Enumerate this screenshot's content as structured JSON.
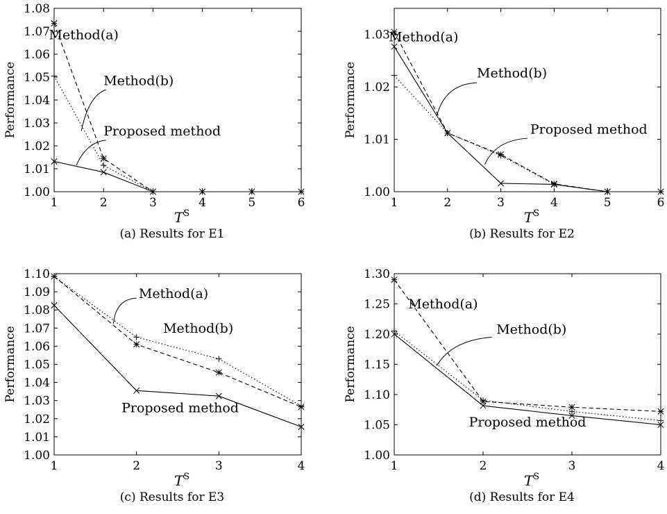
{
  "chart_data": [
    {
      "type": "line",
      "caption": "(a) Results for E1",
      "ylabel": "Performance",
      "xlabel_main": "T",
      "xlabel_sup": "S",
      "xlim": [
        1,
        6
      ],
      "ylim": [
        1.0,
        1.08
      ],
      "x_ticks": [
        1,
        2,
        3,
        4,
        5,
        6
      ],
      "y_ticks": [
        1.0,
        1.01,
        1.02,
        1.03,
        1.04,
        1.05,
        1.06,
        1.07,
        1.08
      ],
      "y_decimals": 2,
      "x": [
        1,
        2,
        3,
        4,
        5,
        6
      ],
      "series": [
        {
          "name": "Method(a)",
          "style": "dashed",
          "marker": "star",
          "values": [
            1.0735,
            1.0145,
            1.0,
            1.0,
            1.0,
            1.0
          ]
        },
        {
          "name": "Method(b)",
          "style": "dotted",
          "marker": "plus",
          "values": [
            1.0505,
            1.0115,
            1.0,
            1.0,
            1.0,
            1.0
          ]
        },
        {
          "name": "Proposed method",
          "style": "solid",
          "marker": "x",
          "values": [
            1.0132,
            1.0085,
            1.0,
            1.0,
            1.0,
            1.0
          ]
        }
      ],
      "annotations": [
        {
          "text": "Method(a)",
          "x": 1.6,
          "y": 1.0665,
          "anchor": "middle"
        },
        {
          "text": "Method(b)",
          "x": 2.0,
          "y": 1.0465,
          "anchor": "start",
          "line": {
            "from": [
              2.05,
              1.0445
            ],
            "ctrl": [
              1.7,
              1.042
            ],
            "to": [
              1.55,
              1.0265
            ]
          }
        },
        {
          "text": "Proposed method",
          "x": 2.0,
          "y": 1.0245,
          "anchor": "start",
          "line": {
            "from": [
              2.05,
              1.0225
            ],
            "ctrl": [
              1.65,
              1.0215
            ],
            "to": [
              1.45,
              1.0115
            ]
          }
        }
      ]
    },
    {
      "type": "line",
      "caption": "(b) Results for E2",
      "ylabel": "Performance",
      "xlabel_main": "T",
      "xlabel_sup": "S",
      "xlim": [
        1,
        6
      ],
      "ylim": [
        1.0,
        1.035
      ],
      "x_ticks": [
        1,
        2,
        3,
        4,
        5,
        6
      ],
      "y_ticks": [
        1.0,
        1.01,
        1.02,
        1.03
      ],
      "y_decimals": 2,
      "x": [
        1,
        2,
        3,
        4,
        5,
        6
      ],
      "series": [
        {
          "name": "Method(a)",
          "style": "dashed",
          "marker": "star",
          "values": [
            1.0305,
            1.0112,
            1.0071,
            1.0015,
            1.0,
            1.0
          ]
        },
        {
          "name": "Method(b)",
          "style": "dotted",
          "marker": "plus",
          "values": [
            1.0222,
            1.0112,
            1.0069,
            1.0014,
            1.0,
            1.0
          ]
        },
        {
          "name": "Proposed method",
          "style": "solid",
          "marker": "x",
          "values": [
            1.0277,
            1.0112,
            1.0016,
            1.0014,
            1.0,
            1.0
          ]
        }
      ],
      "annotations": [
        {
          "text": "Method(a)",
          "x": 1.55,
          "y": 1.0287,
          "anchor": "middle"
        },
        {
          "text": "Method(b)",
          "x": 2.55,
          "y": 1.0218,
          "anchor": "start",
          "line": {
            "from": [
              2.55,
              1.0208
            ],
            "ctrl": [
              1.95,
              1.0205
            ],
            "to": [
              1.8,
              1.0145
            ]
          }
        },
        {
          "text": "Proposed method",
          "x": 3.55,
          "y": 1.0111,
          "anchor": "start",
          "line": {
            "from": [
              3.5,
              1.0102
            ],
            "ctrl": [
              2.9,
              1.0098
            ],
            "to": [
              2.7,
              1.0052
            ]
          }
        }
      ]
    },
    {
      "type": "line",
      "caption": "(c) Results for E3",
      "ylabel": "Performance",
      "xlabel_main": "T",
      "xlabel_sup": "S",
      "xlim": [
        1,
        4
      ],
      "ylim": [
        1.0,
        1.1
      ],
      "x_ticks": [
        1,
        2,
        3,
        4
      ],
      "y_ticks": [
        1.0,
        1.01,
        1.02,
        1.03,
        1.04,
        1.05,
        1.06,
        1.07,
        1.08,
        1.09,
        1.1
      ],
      "y_decimals": 2,
      "x": [
        1,
        2,
        3,
        4
      ],
      "series": [
        {
          "name": "Method(a)",
          "style": "dashed",
          "marker": "star",
          "values": [
            1.0985,
            1.061,
            1.0455,
            1.0265
          ]
        },
        {
          "name": "Method(b)",
          "style": "dotted",
          "marker": "plus",
          "values": [
            1.0985,
            1.065,
            1.053,
            1.027
          ]
        },
        {
          "name": "Proposed method",
          "style": "solid",
          "marker": "x",
          "values": [
            1.0825,
            1.0355,
            1.0325,
            1.0155
          ]
        }
      ],
      "annotations": [
        {
          "text": "Method(a)",
          "x": 2.45,
          "y": 1.0865,
          "anchor": "middle",
          "line": {
            "from": [
              2.0,
              1.0865
            ],
            "ctrl": [
              1.75,
              1.086
            ],
            "to": [
              1.72,
              1.0725
            ]
          }
        },
        {
          "text": "Method(b)",
          "x": 2.75,
          "y": 1.0675,
          "anchor": "middle"
        },
        {
          "text": "Proposed method",
          "x": 2.53,
          "y": 1.0235,
          "anchor": "middle"
        }
      ]
    },
    {
      "type": "line",
      "caption": "(d) Results for E4",
      "ylabel": "Performance",
      "xlabel_main": "T",
      "xlabel_sup": "S",
      "xlim": [
        1,
        4
      ],
      "ylim": [
        1.0,
        1.3
      ],
      "x_ticks": [
        1,
        2,
        3,
        4
      ],
      "y_ticks": [
        1.0,
        1.05,
        1.1,
        1.15,
        1.2,
        1.25,
        1.3
      ],
      "y_decimals": 2,
      "x": [
        1,
        2,
        3,
        4
      ],
      "series": [
        {
          "name": "Method(a)",
          "style": "dashed",
          "marker": "star",
          "values": [
            1.29,
            1.0885,
            1.079,
            1.072
          ]
        },
        {
          "name": "Method(b)",
          "style": "dotted",
          "marker": "plus",
          "values": [
            1.205,
            1.0905,
            1.072,
            1.057
          ]
        },
        {
          "name": "Proposed method",
          "style": "solid",
          "marker": "x",
          "values": [
            1.2,
            1.0815,
            1.065,
            1.05
          ]
        }
      ],
      "annotations": [
        {
          "text": "Method(a)",
          "x": 1.55,
          "y": 1.2425,
          "anchor": "middle"
        },
        {
          "text": "Method(b)",
          "x": 2.15,
          "y": 1.2005,
          "anchor": "start",
          "line": {
            "from": [
              2.1,
              1.195
            ],
            "ctrl": [
              1.65,
              1.19
            ],
            "to": [
              1.48,
              1.148
            ]
          }
        },
        {
          "text": "Proposed method",
          "x": 2.5,
          "y": 1.047,
          "anchor": "middle"
        }
      ]
    }
  ]
}
